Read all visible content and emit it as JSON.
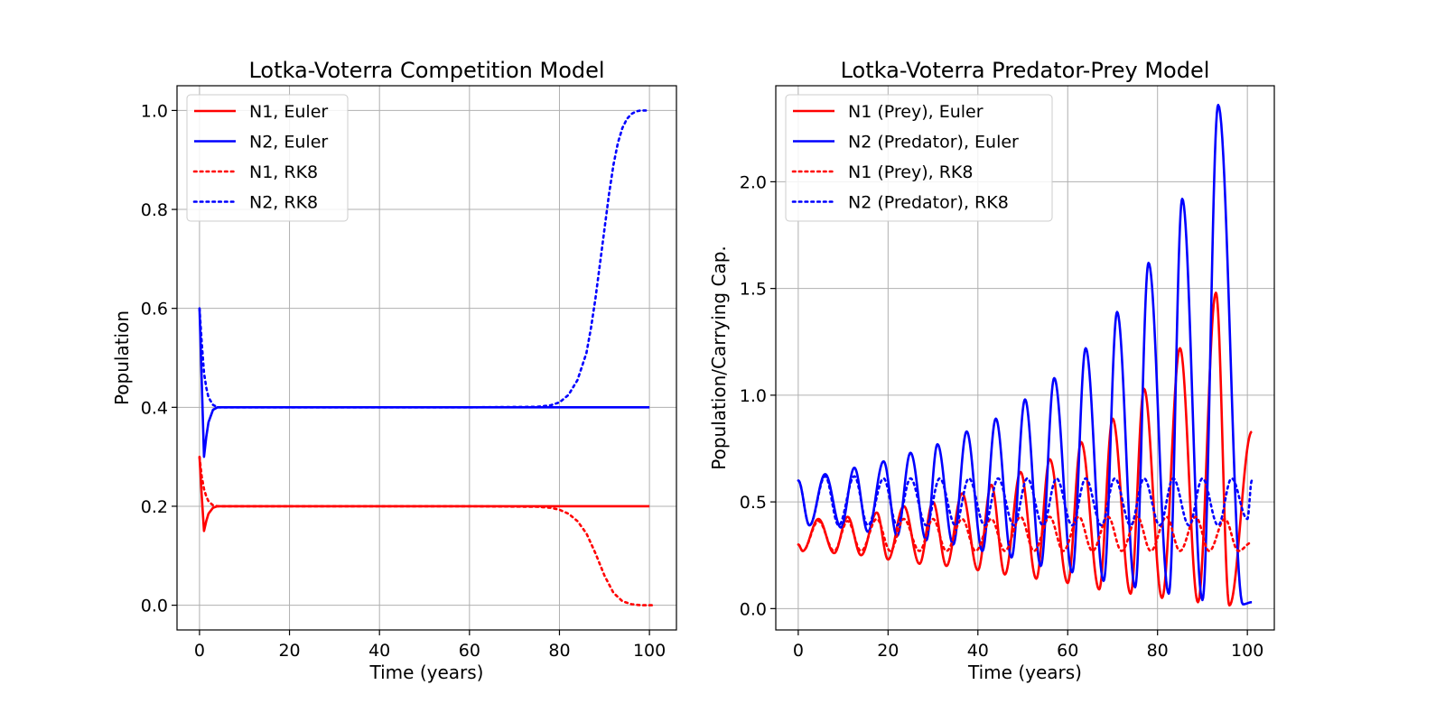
{
  "chart_data": [
    {
      "type": "line",
      "title": "Lotka-Voterra Competition Model",
      "xlabel": "Time (years)",
      "ylabel": "Population",
      "xlim": [
        -5,
        106
      ],
      "ylim": [
        -0.05,
        1.05
      ],
      "xticks": [
        "0",
        "20",
        "40",
        "60",
        "80",
        "100"
      ],
      "yticks": [
        "0.0",
        "0.2",
        "0.4",
        "0.6",
        "0.8",
        "1.0"
      ],
      "grid": true,
      "legend_position": "top-left",
      "series": [
        {
          "name": "N1, Euler",
          "color": "#ff0000",
          "style": "solid",
          "x": [
            0,
            0.5,
            1,
            1.5,
            2,
            3,
            4,
            5,
            10,
            20,
            40,
            60,
            80,
            90,
            100
          ],
          "y": [
            0.3,
            0.22,
            0.15,
            0.17,
            0.185,
            0.197,
            0.2,
            0.2,
            0.2,
            0.2,
            0.2,
            0.2,
            0.2,
            0.2,
            0.2
          ]
        },
        {
          "name": "N2, Euler",
          "color": "#0000ff",
          "style": "solid",
          "x": [
            0,
            0.5,
            1,
            1.5,
            2,
            3,
            4,
            5,
            10,
            20,
            40,
            60,
            80,
            90,
            100
          ],
          "y": [
            0.6,
            0.45,
            0.3,
            0.34,
            0.37,
            0.395,
            0.4,
            0.4,
            0.4,
            0.4,
            0.4,
            0.4,
            0.4,
            0.4,
            0.4
          ]
        },
        {
          "name": "N1, RK8",
          "color": "#ff0000",
          "style": "dotted",
          "x": [
            0,
            0.5,
            1,
            1.5,
            2,
            3,
            4,
            6,
            10,
            30,
            60,
            75,
            78,
            80,
            82,
            84,
            86,
            88,
            90,
            92,
            94,
            96,
            98,
            100,
            101
          ],
          "y": [
            0.3,
            0.26,
            0.235,
            0.22,
            0.21,
            0.202,
            0.2,
            0.2,
            0.2,
            0.2,
            0.2,
            0.199,
            0.197,
            0.193,
            0.185,
            0.17,
            0.145,
            0.105,
            0.06,
            0.025,
            0.008,
            0.002,
            0.0,
            0.0,
            0.0
          ]
        },
        {
          "name": "N2, RK8",
          "color": "#0000ff",
          "style": "dotted",
          "x": [
            0,
            0.5,
            1,
            1.5,
            2,
            3,
            4,
            6,
            10,
            30,
            60,
            75,
            78,
            80,
            82,
            84,
            86,
            87,
            88,
            89,
            90,
            91,
            92,
            93,
            94,
            95,
            96,
            97,
            98,
            100
          ],
          "y": [
            0.6,
            0.53,
            0.47,
            0.44,
            0.42,
            0.405,
            0.4,
            0.4,
            0.4,
            0.4,
            0.4,
            0.401,
            0.404,
            0.41,
            0.425,
            0.455,
            0.51,
            0.56,
            0.62,
            0.69,
            0.76,
            0.83,
            0.89,
            0.935,
            0.965,
            0.983,
            0.993,
            0.998,
            1.0,
            1.0
          ]
        }
      ]
    },
    {
      "type": "line",
      "title": "Lotka-Voterra Predator-Prey Model",
      "xlabel": "Time (years)",
      "ylabel": "Population/Carrying Cap.",
      "xlim": [
        -5,
        106
      ],
      "ylim": [
        -0.1,
        2.45
      ],
      "xticks": [
        "0",
        "20",
        "40",
        "60",
        "80",
        "100"
      ],
      "yticks": [
        "0.0",
        "0.5",
        "1.0",
        "1.5",
        "2.0"
      ],
      "grid": true,
      "legend_position": "top-left",
      "series": [
        {
          "name": "N1 (Prey), Euler",
          "color": "#ff0000",
          "style": "solid",
          "peaks": [
            [
              4.5,
              0.42
            ],
            [
              11,
              0.43
            ],
            [
              17.5,
              0.45
            ],
            [
              23.5,
              0.48
            ],
            [
              30,
              0.5
            ],
            [
              36.5,
              0.54
            ],
            [
              43,
              0.58
            ],
            [
              49.5,
              0.64
            ],
            [
              56,
              0.7
            ],
            [
              63,
              0.78
            ],
            [
              70,
              0.89
            ],
            [
              77,
              1.03
            ],
            [
              85,
              1.22
            ],
            [
              93,
              1.48
            ]
          ],
          "troughs": [
            [
              1,
              0.27
            ],
            [
              8,
              0.26
            ],
            [
              14,
              0.25
            ],
            [
              20,
              0.23
            ],
            [
              27,
              0.21
            ],
            [
              33,
              0.2
            ],
            [
              40,
              0.18
            ],
            [
              46,
              0.16
            ],
            [
              53,
              0.14
            ],
            [
              60,
              0.12
            ],
            [
              67,
              0.09
            ],
            [
              74,
              0.07
            ],
            [
              81,
              0.05
            ],
            [
              89,
              0.03
            ],
            [
              96,
              0.015
            ]
          ],
          "start": [
            0,
            0.3
          ],
          "end": [
            101,
            0.83
          ]
        },
        {
          "name": "N2 (Predator), Euler",
          "color": "#0000ff",
          "style": "solid",
          "peaks": [
            [
              6,
              0.63
            ],
            [
              12.5,
              0.66
            ],
            [
              19,
              0.69
            ],
            [
              25,
              0.73
            ],
            [
              31,
              0.77
            ],
            [
              37.5,
              0.83
            ],
            [
              44,
              0.89
            ],
            [
              50.5,
              0.98
            ],
            [
              57,
              1.08
            ],
            [
              64,
              1.22
            ],
            [
              71,
              1.39
            ],
            [
              78,
              1.62
            ],
            [
              85.5,
              1.92
            ],
            [
              93.5,
              2.36
            ]
          ],
          "troughs": [
            [
              2.5,
              0.39
            ],
            [
              9.5,
              0.38
            ],
            [
              15.5,
              0.36
            ],
            [
              22,
              0.34
            ],
            [
              28.5,
              0.32
            ],
            [
              34.5,
              0.3
            ],
            [
              41,
              0.27
            ],
            [
              47.5,
              0.24
            ],
            [
              54,
              0.2
            ],
            [
              61,
              0.17
            ],
            [
              68,
              0.13
            ],
            [
              75,
              0.1
            ],
            [
              82.5,
              0.07
            ],
            [
              90,
              0.04
            ],
            [
              99,
              0.02
            ]
          ],
          "start": [
            0,
            0.6
          ],
          "end": [
            101,
            0.03
          ]
        },
        {
          "name": "N1 (Prey), RK8",
          "color": "#ff0000",
          "style": "dotted",
          "peaks": [
            [
              4.5,
              0.41
            ],
            [
              11,
              0.41
            ],
            [
              17.5,
              0.42
            ],
            [
              23.5,
              0.42
            ],
            [
              30,
              0.42
            ],
            [
              36.5,
              0.42
            ],
            [
              43,
              0.42
            ],
            [
              49.5,
              0.43
            ],
            [
              56,
              0.43
            ],
            [
              62.5,
              0.43
            ],
            [
              69,
              0.43
            ],
            [
              75.5,
              0.43
            ],
            [
              82,
              0.43
            ],
            [
              88.5,
              0.43
            ],
            [
              95,
              0.42
            ]
          ],
          "troughs": [
            [
              1,
              0.27
            ],
            [
              8,
              0.27
            ],
            [
              14,
              0.27
            ],
            [
              20.5,
              0.27
            ],
            [
              27,
              0.27
            ],
            [
              33,
              0.27
            ],
            [
              39.5,
              0.27
            ],
            [
              46,
              0.27
            ],
            [
              52.5,
              0.27
            ],
            [
              59,
              0.27
            ],
            [
              65.5,
              0.27
            ],
            [
              72,
              0.27
            ],
            [
              78.5,
              0.27
            ],
            [
              85,
              0.27
            ],
            [
              91.5,
              0.27
            ],
            [
              98,
              0.27
            ]
          ],
          "start": [
            0,
            0.3
          ],
          "end": [
            101,
            0.31
          ]
        },
        {
          "name": "N2 (Predator), RK8",
          "color": "#0000ff",
          "style": "dotted",
          "peaks": [
            [
              6,
              0.62
            ],
            [
              12.5,
              0.62
            ],
            [
              19,
              0.61
            ],
            [
              25,
              0.61
            ],
            [
              31.5,
              0.61
            ],
            [
              38,
              0.61
            ],
            [
              44.5,
              0.61
            ],
            [
              51,
              0.61
            ],
            [
              57.5,
              0.61
            ],
            [
              64,
              0.61
            ],
            [
              70.5,
              0.61
            ],
            [
              77,
              0.61
            ],
            [
              83.5,
              0.61
            ],
            [
              90,
              0.61
            ],
            [
              96.5,
              0.61
            ]
          ],
          "troughs": [
            [
              2.5,
              0.39
            ],
            [
              9,
              0.39
            ],
            [
              15.5,
              0.39
            ],
            [
              22,
              0.39
            ],
            [
              28.5,
              0.39
            ],
            [
              35,
              0.39
            ],
            [
              41.5,
              0.39
            ],
            [
              48,
              0.39
            ],
            [
              54.5,
              0.39
            ],
            [
              61,
              0.39
            ],
            [
              67.5,
              0.39
            ],
            [
              74,
              0.39
            ],
            [
              80.5,
              0.39
            ],
            [
              87,
              0.39
            ],
            [
              93.5,
              0.39
            ],
            [
              100,
              0.42
            ]
          ],
          "start": [
            0,
            0.6
          ],
          "end": [
            101,
            0.6
          ]
        }
      ]
    }
  ]
}
